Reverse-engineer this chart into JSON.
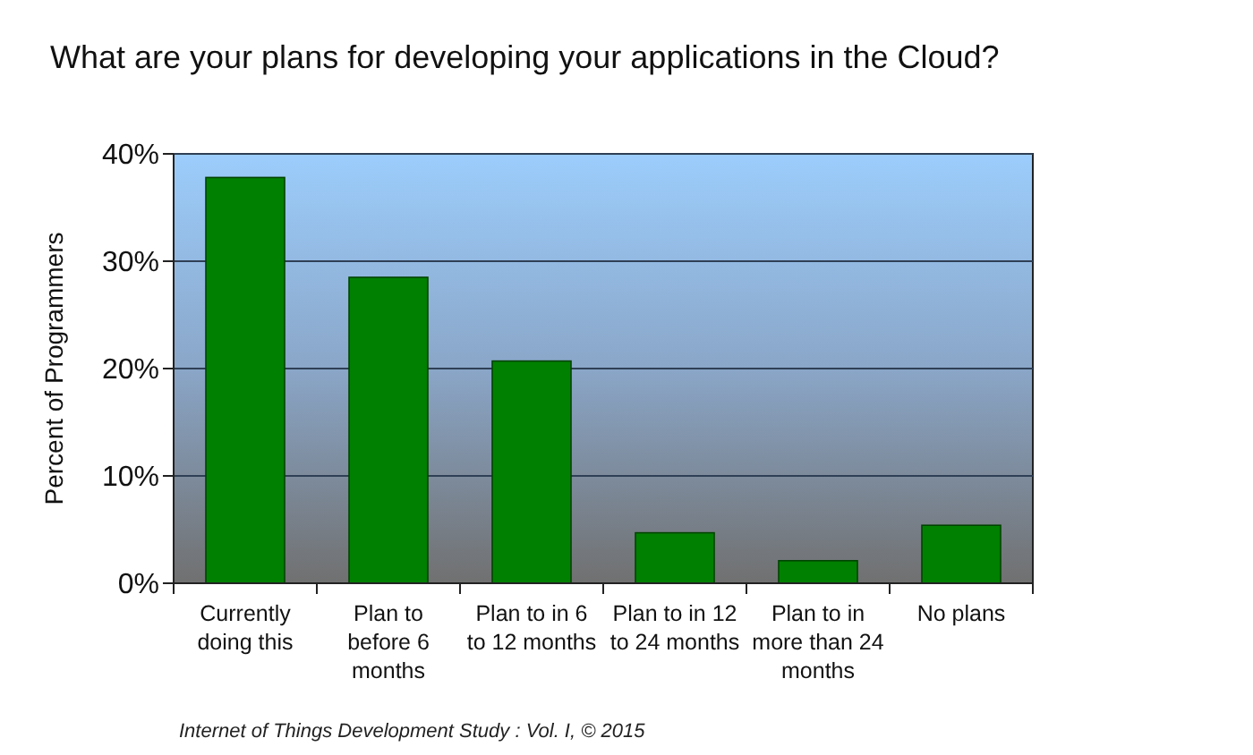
{
  "chart_data": {
    "type": "bar",
    "title": "What are your plans for developing your applications in the Cloud?",
    "ylabel": "Percent of Programmers",
    "annotations": [
      "Internet of Things Development Study : Vol. I, © 2015"
    ],
    "categories": [
      "Currently doing this",
      "Plan to before 6 months",
      "Plan to in 6 to 12 months",
      "Plan to in 12 to 24 months",
      "Plan to in more than 24 months",
      "No plans"
    ],
    "values": [
      37.8,
      28.5,
      20.7,
      4.7,
      2.1,
      5.4
    ],
    "color": "#008000",
    "ylim": [
      0,
      40
    ],
    "yticks": [
      {
        "value": 0,
        "label": "0%"
      },
      {
        "value": 10,
        "label": "10%"
      },
      {
        "value": 20,
        "label": "20%"
      },
      {
        "value": 30,
        "label": "30%"
      },
      {
        "value": 40,
        "label": "40%"
      }
    ],
    "grid": true
  }
}
